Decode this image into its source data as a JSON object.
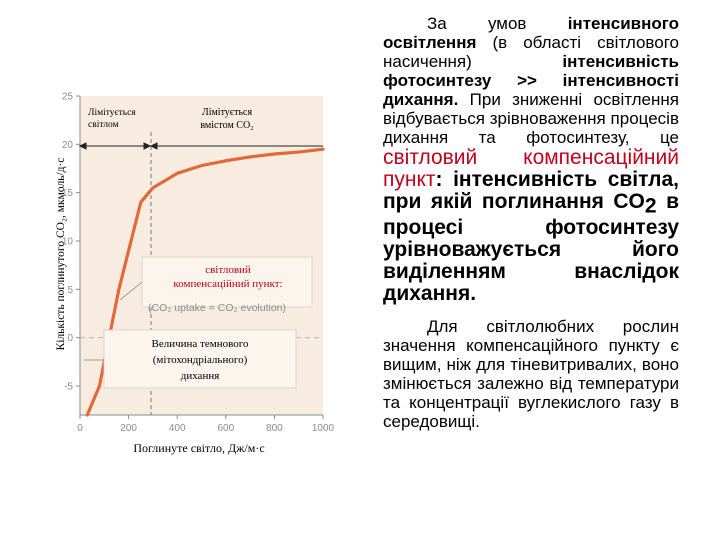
{
  "chart_data": {
    "type": "line",
    "ylabel": "Кількість поглинутого CO₂, мкмоль/д·с",
    "xlabel": "Поглинуте світло, Дж/м·с",
    "xlim": [
      0,
      1000
    ],
    "ylim": [
      -8,
      25
    ],
    "x_ticks": [
      "0",
      "200",
      "400",
      "600",
      "800",
      "1000"
    ],
    "y_ticks": [
      "-5",
      "0",
      "5",
      "10",
      "15",
      "20",
      "25"
    ],
    "series": [
      {
        "color": "#e2693a",
        "points": [
          [
            30,
            -8
          ],
          [
            80,
            -5
          ],
          [
            120,
            0
          ],
          [
            160,
            5
          ],
          [
            210,
            10
          ],
          [
            250,
            14
          ],
          [
            300,
            15.5
          ],
          [
            400,
            17
          ],
          [
            500,
            17.8
          ],
          [
            600,
            18.3
          ],
          [
            700,
            18.7
          ],
          [
            800,
            19
          ],
          [
            900,
            19.2
          ],
          [
            1000,
            19.5
          ]
        ]
      }
    ],
    "annotations": {
      "light_limited": "Лімітується світлом",
      "co2_limited": "Лімітується вмістом CO₂",
      "compensation_point_title": "світловий компенсаційний пункт:",
      "compensation_point_formula": "(CO₂ uptake = CO₂ evolution)",
      "dark_respiration": "Величина темнового (мітохондріального) дихання"
    },
    "colors": {
      "plot_background": "#f7ecdf",
      "curve": "#e2693a",
      "annotation_box": "#fbf5ee",
      "axis": "#8c8c8c"
    }
  },
  "text": {
    "p1_a": "За умов ",
    "p1_b": "інтенсивного освітлення",
    "p1_c": " (в області світлового насичення) ",
    "p1_d": "інтенсивність фотосинтезу >> інтенсивності дихання.",
    "p1_e": " При зниженні освітлення відбувається зрівноваження процесів дихання та фотосинтезу, це ",
    "p1_f": "світловий компенсаційний пункт",
    "p1_g": ": інтенсивність світла, при якій поглинання CO",
    "p1_sub": "2",
    "p1_h": " в процесі фотосинтезу урівноважується його виділенням внаслідок дихання.",
    "p2": "Для світлолюбних рослин значення компенсаційного пункту є вищим, ніж для тіневитривалих, воно змінюється залежно від температури та концентрації вуглекислого газу в середовищі."
  }
}
